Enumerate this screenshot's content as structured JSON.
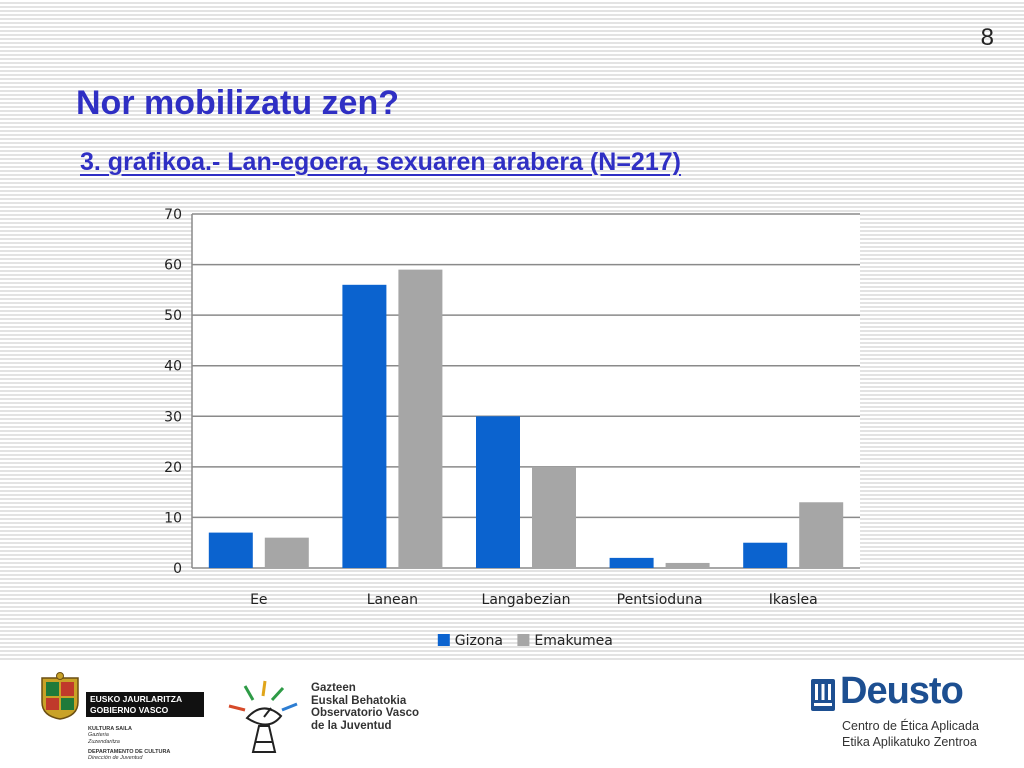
{
  "slide_number": "8",
  "title": "Nor mobilizatu zen?",
  "subtitle": "3. grafikoa.- Lan-egoera, sexuaren arabera (N=217)",
  "chart_data": {
    "type": "bar",
    "categories": [
      "Ee",
      "Lanean",
      "Langabezian",
      "Pentsioduna",
      "Ikaslea"
    ],
    "series": [
      {
        "name": "Gizona",
        "values": [
          7,
          56,
          30,
          2,
          5
        ],
        "color": "#0b63cf"
      },
      {
        "name": "Emakumea",
        "values": [
          6,
          59,
          20,
          1,
          13
        ],
        "color": "#a6a6a6"
      }
    ],
    "ylim": [
      0,
      70
    ],
    "yticks": [
      0,
      10,
      20,
      30,
      40,
      50,
      60,
      70
    ],
    "xlabel": "",
    "ylabel": "",
    "grid": true,
    "legend_position": "bottom"
  },
  "footer": {
    "basque_gov": {
      "name_eu": "EUSKO JAURLARITZA",
      "name_es": "GOBIERNO VASCO",
      "dept_line1": "KULTURA SAILA",
      "dept_line2": "Gazteria",
      "dept_line3": "Zuzendaritza",
      "dept_line4": "DEPARTAMENTO DE CULTURA",
      "dept_line5": "Dirección de Juventud"
    },
    "observatory": {
      "line1": "Gazteen",
      "line2": "Euskal Behatokia",
      "line3": "Observatorio Vasco",
      "line4": "de la Juventud"
    },
    "deusto": {
      "name": "Deusto",
      "line1": "Centro de Ética Aplicada",
      "line2": "Etika Aplikatuko Zentroa"
    }
  },
  "colors": {
    "title": "#2f2fc4",
    "series_blue": "#0b63cf",
    "series_gray": "#a6a6a6",
    "deusto_blue": "#1d4f91"
  }
}
